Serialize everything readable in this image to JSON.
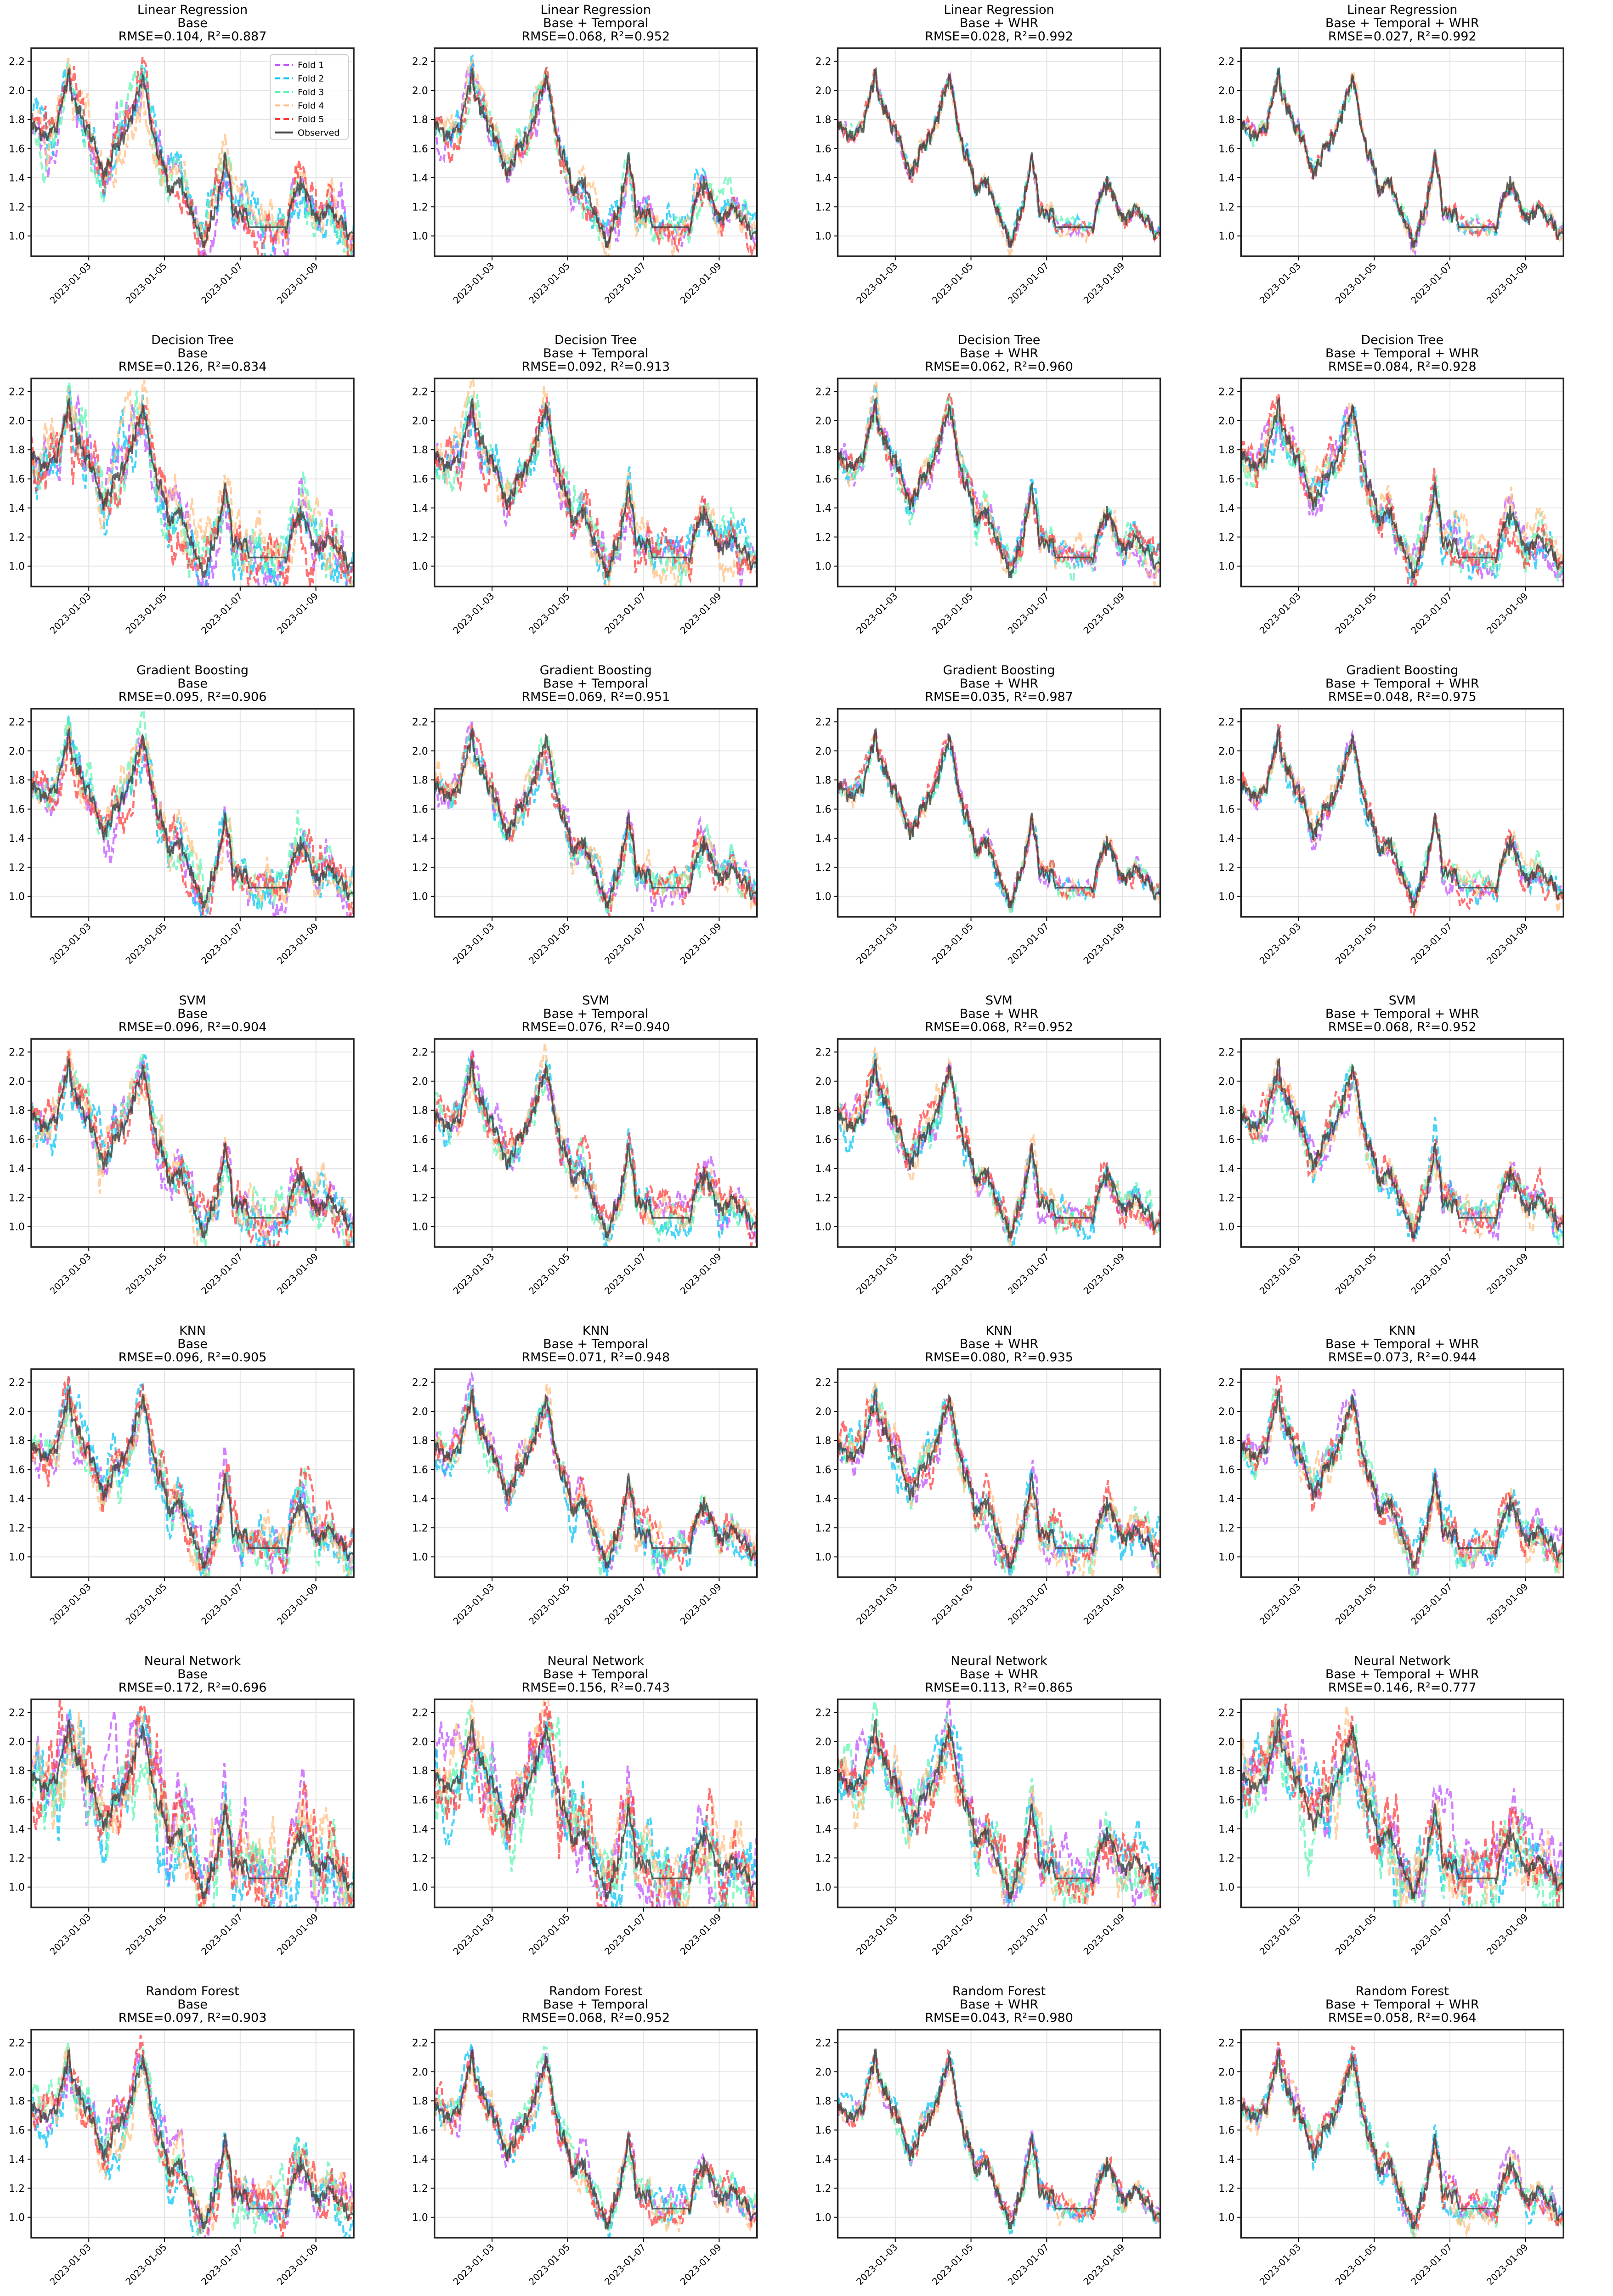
{
  "chart_data": {
    "type": "line",
    "layout": "grid 7 rows x 4 columns",
    "x_unit": "days since 2023-01-01 00:00",
    "xlim": [
      0.48,
      9.0
    ],
    "ylim": [
      0.86,
      2.29
    ],
    "x_ticks": [
      {
        "value": 2,
        "label": "2023-01-03"
      },
      {
        "value": 4,
        "label": "2023-01-05"
      },
      {
        "value": 6,
        "label": "2023-01-07"
      },
      {
        "value": 8,
        "label": "2023-01-09"
      }
    ],
    "y_ticks": [
      {
        "value": 1.0,
        "label": "1.0"
      },
      {
        "value": 1.2,
        "label": "1.2"
      },
      {
        "value": 1.4,
        "label": "1.4"
      },
      {
        "value": 1.6,
        "label": "1.6"
      },
      {
        "value": 1.8,
        "label": "1.8"
      },
      {
        "value": 2.0,
        "label": "2.0"
      },
      {
        "value": 2.2,
        "label": "2.2"
      }
    ],
    "grid": true,
    "legend_placement": "top-right (first panel only)",
    "series_styles": [
      {
        "name": "Fold 1",
        "color": "#c04dff",
        "style": "dashed"
      },
      {
        "name": "Fold 2",
        "color": "#00c4f5",
        "style": "dashed"
      },
      {
        "name": "Fold 3",
        "color": "#5cf5b0",
        "style": "dashed"
      },
      {
        "name": "Fold 4",
        "color": "#ffbf80",
        "style": "dashed"
      },
      {
        "name": "Fold 5",
        "color": "#ff3b3b",
        "style": "dashed"
      },
      {
        "name": "Observed",
        "color": "#404040",
        "style": "solid"
      }
    ],
    "observed_approx": [
      [
        0.48,
        1.75
      ],
      [
        0.93,
        1.7
      ],
      [
        1.18,
        1.75
      ],
      [
        1.46,
        2.15
      ],
      [
        1.55,
        2.0
      ],
      [
        1.8,
        1.8
      ],
      [
        2.05,
        1.7
      ],
      [
        2.24,
        1.58
      ],
      [
        2.42,
        1.4
      ],
      [
        2.61,
        1.55
      ],
      [
        2.92,
        1.7
      ],
      [
        3.23,
        1.9
      ],
      [
        3.45,
        2.1
      ],
      [
        3.6,
        1.8
      ],
      [
        3.79,
        1.6
      ],
      [
        4.04,
        1.45
      ],
      [
        4.13,
        1.25
      ],
      [
        4.29,
        1.4
      ],
      [
        4.6,
        1.25
      ],
      [
        4.84,
        1.05
      ],
      [
        5.06,
        0.92
      ],
      [
        5.22,
        1.1
      ],
      [
        5.47,
        1.3
      ],
      [
        5.62,
        1.55
      ],
      [
        5.81,
        1.2
      ],
      [
        6.18,
        1.12
      ],
      [
        6.24,
        1.06
      ],
      [
        7.2,
        1.06
      ],
      [
        7.33,
        1.2
      ],
      [
        7.6,
        1.38
      ],
      [
        7.76,
        1.25
      ],
      [
        8.01,
        1.12
      ],
      [
        8.38,
        1.18
      ],
      [
        8.7,
        1.1
      ],
      [
        8.88,
        1.0
      ],
      [
        8.98,
        1.03
      ]
    ],
    "panels": [
      {
        "model": "Linear Regression",
        "features": "Base",
        "metrics": "RMSE=0.104, R²=0.887",
        "rmse": 0.104,
        "r2": 0.887
      },
      {
        "model": "Linear Regression",
        "features": "Base + Temporal",
        "metrics": "RMSE=0.068, R²=0.952",
        "rmse": 0.068,
        "r2": 0.952
      },
      {
        "model": "Linear Regression",
        "features": "Base + WHR",
        "metrics": "RMSE=0.028, R²=0.992",
        "rmse": 0.028,
        "r2": 0.992
      },
      {
        "model": "Linear Regression",
        "features": "Base + Temporal + WHR",
        "metrics": "RMSE=0.027, R²=0.992",
        "rmse": 0.027,
        "r2": 0.992
      },
      {
        "model": "Decision Tree",
        "features": "Base",
        "metrics": "RMSE=0.126, R²=0.834",
        "rmse": 0.126,
        "r2": 0.834
      },
      {
        "model": "Decision Tree",
        "features": "Base + Temporal",
        "metrics": "RMSE=0.092, R²=0.913",
        "rmse": 0.092,
        "r2": 0.913
      },
      {
        "model": "Decision Tree",
        "features": "Base + WHR",
        "metrics": "RMSE=0.062, R²=0.960",
        "rmse": 0.062,
        "r2": 0.96
      },
      {
        "model": "Decision Tree",
        "features": "Base + Temporal + WHR",
        "metrics": "RMSE=0.084, R²=0.928",
        "rmse": 0.084,
        "r2": 0.928
      },
      {
        "model": "Gradient Boosting",
        "features": "Base",
        "metrics": "RMSE=0.095, R²=0.906",
        "rmse": 0.095,
        "r2": 0.906
      },
      {
        "model": "Gradient Boosting",
        "features": "Base + Temporal",
        "metrics": "RMSE=0.069, R²=0.951",
        "rmse": 0.069,
        "r2": 0.951
      },
      {
        "model": "Gradient Boosting",
        "features": "Base + WHR",
        "metrics": "RMSE=0.035, R²=0.987",
        "rmse": 0.035,
        "r2": 0.987
      },
      {
        "model": "Gradient Boosting",
        "features": "Base + Temporal + WHR",
        "metrics": "RMSE=0.048, R²=0.975",
        "rmse": 0.048,
        "r2": 0.975
      },
      {
        "model": "SVM",
        "features": "Base",
        "metrics": "RMSE=0.096, R²=0.904",
        "rmse": 0.096,
        "r2": 0.904
      },
      {
        "model": "SVM",
        "features": "Base + Temporal",
        "metrics": "RMSE=0.076, R²=0.940",
        "rmse": 0.076,
        "r2": 0.94
      },
      {
        "model": "SVM",
        "features": "Base + WHR",
        "metrics": "RMSE=0.068, R²=0.952",
        "rmse": 0.068,
        "r2": 0.952
      },
      {
        "model": "SVM",
        "features": "Base + Temporal + WHR",
        "metrics": "RMSE=0.068, R²=0.952",
        "rmse": 0.068,
        "r2": 0.952
      },
      {
        "model": "KNN",
        "features": "Base",
        "metrics": "RMSE=0.096, R²=0.905",
        "rmse": 0.096,
        "r2": 0.905
      },
      {
        "model": "KNN",
        "features": "Base + Temporal",
        "metrics": "RMSE=0.071, R²=0.948",
        "rmse": 0.071,
        "r2": 0.948
      },
      {
        "model": "KNN",
        "features": "Base + WHR",
        "metrics": "RMSE=0.080, R²=0.935",
        "rmse": 0.08,
        "r2": 0.935
      },
      {
        "model": "KNN",
        "features": "Base + Temporal + WHR",
        "metrics": "RMSE=0.073, R²=0.944",
        "rmse": 0.073,
        "r2": 0.944
      },
      {
        "model": "Neural Network",
        "features": "Base",
        "metrics": "RMSE=0.172, R²=0.696",
        "rmse": 0.172,
        "r2": 0.696
      },
      {
        "model": "Neural Network",
        "features": "Base + Temporal",
        "metrics": "RMSE=0.156, R²=0.743",
        "rmse": 0.156,
        "r2": 0.743
      },
      {
        "model": "Neural Network",
        "features": "Base + WHR",
        "metrics": "RMSE=0.113, R²=0.865",
        "rmse": 0.113,
        "r2": 0.865
      },
      {
        "model": "Neural Network",
        "features": "Base + Temporal + WHR",
        "metrics": "RMSE=0.146, R²=0.777",
        "rmse": 0.146,
        "r2": 0.777
      },
      {
        "model": "Random Forest",
        "features": "Base",
        "metrics": "RMSE=0.097, R²=0.903",
        "rmse": 0.097,
        "r2": 0.903
      },
      {
        "model": "Random Forest",
        "features": "Base + Temporal",
        "metrics": "RMSE=0.068, R²=0.952",
        "rmse": 0.068,
        "r2": 0.952
      },
      {
        "model": "Random Forest",
        "features": "Base + WHR",
        "metrics": "RMSE=0.043, R²=0.980",
        "rmse": 0.043,
        "r2": 0.98
      },
      {
        "model": "Random Forest",
        "features": "Base + Temporal + WHR",
        "metrics": "RMSE=0.058, R²=0.964",
        "rmse": 0.058,
        "r2": 0.964
      }
    ]
  }
}
